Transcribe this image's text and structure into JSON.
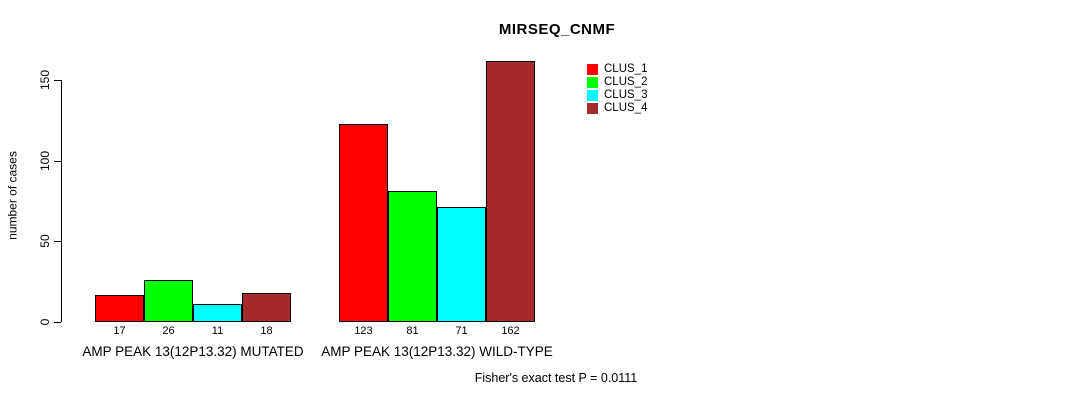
{
  "title": "MIRSEQ_CNMF",
  "chart_data": {
    "type": "bar",
    "title": "MIRSEQ_CNMF",
    "ylabel": "number of cases",
    "xlabel": "",
    "categories": [
      "AMP PEAK 13(12P13.32) MUTATED",
      "AMP PEAK 13(12P13.32) WILD-TYPE"
    ],
    "series": [
      {
        "name": "CLUS_1",
        "color": "#ff0000",
        "values": [
          17,
          123
        ]
      },
      {
        "name": "CLUS_2",
        "color": "#00ff00",
        "values": [
          26,
          81
        ]
      },
      {
        "name": "CLUS_3",
        "color": "#00ffff",
        "values": [
          11,
          71
        ]
      },
      {
        "name": "CLUS_4",
        "color": "#a52a2a",
        "values": [
          18,
          162
        ]
      }
    ],
    "bar_value_labels": [
      [
        "17",
        "26",
        "11",
        "18"
      ],
      [
        "123",
        "81",
        "71",
        "162"
      ]
    ],
    "yticks": [
      "0",
      "50",
      "100",
      "150"
    ],
    "ylim": [
      0,
      162
    ],
    "grid": false,
    "legend_position": "top-right",
    "annotation": "Fisher's exact test P = 0.0111"
  }
}
